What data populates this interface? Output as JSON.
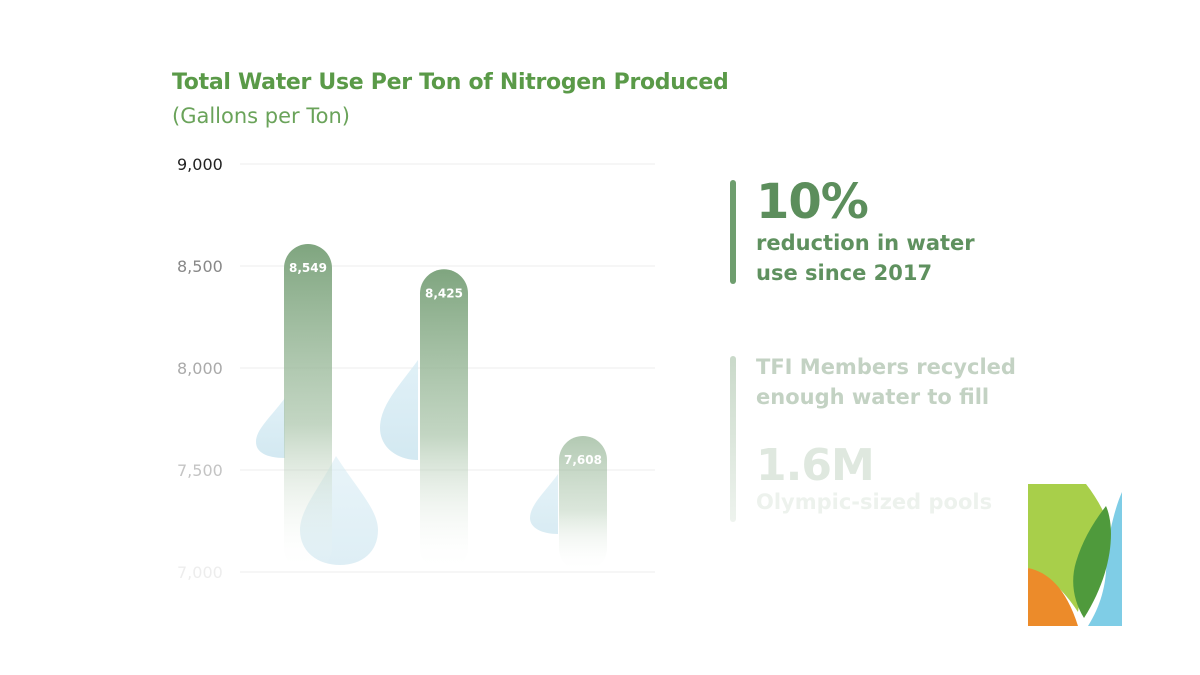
{
  "title": "Total Water Use Per Ton of Nitrogen Produced",
  "subtitle": "(Gallons per Ton)",
  "chart_data": {
    "type": "bar",
    "title": "Total Water Use Per Ton of Nitrogen Produced",
    "subtitle": "(Gallons per Ton)",
    "categories": [
      "",
      "",
      ""
    ],
    "values": [
      8549,
      8425,
      7608
    ],
    "value_labels": [
      "8,549",
      "8,425",
      "7,608"
    ],
    "yticks": [
      {
        "value": 9000,
        "label": "9,000"
      },
      {
        "value": 8500,
        "label": "8,500"
      },
      {
        "value": 8000,
        "label": "8,000"
      },
      {
        "value": 7500,
        "label": "7,500"
      },
      {
        "value": 7000,
        "label": "7,000"
      }
    ],
    "ylim": [
      7000,
      9000
    ],
    "grid": true,
    "bar_color": "#7fa57f"
  },
  "stats": {
    "stat1": {
      "big": "10%",
      "text": "reduction in water use since 2017"
    },
    "stat2": {
      "text": "TFI Members recycled enough water to fill",
      "big": "1.6M",
      "tail": "Olympic-sized pools"
    }
  },
  "colors": {
    "title": "#5a9a48",
    "bar": "#7fa57f",
    "drop": "#cfe6f0",
    "logo_lime": "#a8cf4a",
    "logo_green": "#4f9a3c",
    "logo_orange": "#ec8b2a",
    "logo_blue": "#7fcde6"
  },
  "logo": {
    "icon": "leaf-logo-icon"
  }
}
